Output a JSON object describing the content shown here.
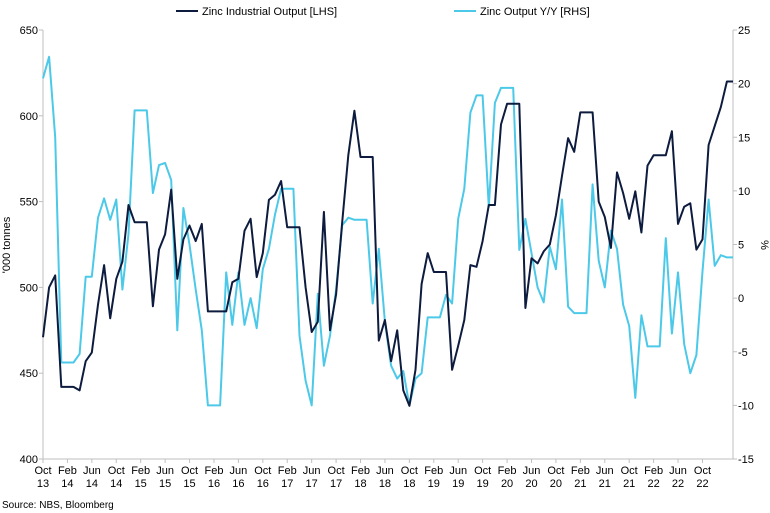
{
  "chart_data": {
    "type": "line",
    "title": "",
    "source": "Source: NBS, Bloomberg",
    "left_axis": {
      "label": "'000 tonnes",
      "range": [
        400,
        650
      ],
      "ticks": [
        "650",
        "600",
        "550",
        "500",
        "450",
        "400"
      ]
    },
    "right_axis": {
      "label": "%",
      "range": [
        -15,
        25
      ],
      "ticks": [
        "25",
        "20",
        "15",
        "10",
        "5",
        "0",
        "-5",
        "-10",
        "-15"
      ]
    },
    "x_ticks": [
      {
        "month": "Oct",
        "year": "13"
      },
      {
        "month": "Feb",
        "year": "14"
      },
      {
        "month": "Jun",
        "year": "14"
      },
      {
        "month": "Oct",
        "year": "14"
      },
      {
        "month": "Feb",
        "year": "15"
      },
      {
        "month": "Jun",
        "year": "15"
      },
      {
        "month": "Oct",
        "year": "15"
      },
      {
        "month": "Feb",
        "year": "16"
      },
      {
        "month": "Jun",
        "year": "16"
      },
      {
        "month": "Oct",
        "year": "16"
      },
      {
        "month": "Feb",
        "year": "17"
      },
      {
        "month": "Jun",
        "year": "17"
      },
      {
        "month": "Oct",
        "year": "17"
      },
      {
        "month": "Feb",
        "year": "18"
      },
      {
        "month": "Jun",
        "year": "18"
      },
      {
        "month": "Oct",
        "year": "18"
      },
      {
        "month": "Feb",
        "year": "19"
      },
      {
        "month": "Jun",
        "year": "19"
      },
      {
        "month": "Oct",
        "year": "19"
      },
      {
        "month": "Feb",
        "year": "20"
      },
      {
        "month": "Jun",
        "year": "20"
      },
      {
        "month": "Oct",
        "year": "20"
      },
      {
        "month": "Feb",
        "year": "21"
      },
      {
        "month": "Jun",
        "year": "21"
      },
      {
        "month": "Oct",
        "year": "21"
      },
      {
        "month": "Feb",
        "year": "22"
      },
      {
        "month": "Jun",
        "year": "22"
      },
      {
        "month": "Oct",
        "year": "22"
      }
    ],
    "series": [
      {
        "name": "Zinc Industrial Output [LHS]",
        "axis": "left",
        "color": "#0d1b3e",
        "points": [
          [
            "2013-10",
            471
          ],
          [
            "2013-11",
            500
          ],
          [
            "2013-12",
            507
          ],
          [
            "2014-01",
            442
          ],
          [
            "2014-02",
            442
          ],
          [
            "2014-03",
            442
          ],
          [
            "2014-04",
            440
          ],
          [
            "2014-05",
            457
          ],
          [
            "2014-06",
            462
          ],
          [
            "2014-07",
            490
          ],
          [
            "2014-08",
            513
          ],
          [
            "2014-09",
            482
          ],
          [
            "2014-10",
            505
          ],
          [
            "2014-11",
            515
          ],
          [
            "2014-12",
            548
          ],
          [
            "2015-01",
            538
          ],
          [
            "2015-02",
            538
          ],
          [
            "2015-03",
            538
          ],
          [
            "2015-04",
            489
          ],
          [
            "2015-05",
            522
          ],
          [
            "2015-06",
            531
          ],
          [
            "2015-07",
            557
          ],
          [
            "2015-08",
            505
          ],
          [
            "2015-09",
            528
          ],
          [
            "2015-10",
            536
          ],
          [
            "2015-11",
            527
          ],
          [
            "2015-12",
            537
          ],
          [
            "2016-01",
            486
          ],
          [
            "2016-02",
            486
          ],
          [
            "2016-03",
            486
          ],
          [
            "2016-04",
            486
          ],
          [
            "2016-05",
            503
          ],
          [
            "2016-06",
            505
          ],
          [
            "2016-07",
            533
          ],
          [
            "2016-08",
            540
          ],
          [
            "2016-09",
            506
          ],
          [
            "2016-10",
            520
          ],
          [
            "2016-11",
            551
          ],
          [
            "2016-12",
            554
          ],
          [
            "2017-01",
            562
          ],
          [
            "2017-02",
            535
          ],
          [
            "2017-03",
            535
          ],
          [
            "2017-04",
            535
          ],
          [
            "2017-05",
            500
          ],
          [
            "2017-06",
            474
          ],
          [
            "2017-07",
            480
          ],
          [
            "2017-08",
            544
          ],
          [
            "2017-09",
            475
          ],
          [
            "2017-10",
            496
          ],
          [
            "2017-11",
            538
          ],
          [
            "2017-12",
            577
          ],
          [
            "2018-01",
            603
          ],
          [
            "2018-02",
            576
          ],
          [
            "2018-03",
            576
          ],
          [
            "2018-04",
            576
          ],
          [
            "2018-05",
            469
          ],
          [
            "2018-06",
            481
          ],
          [
            "2018-07",
            457
          ],
          [
            "2018-08",
            475
          ],
          [
            "2018-09",
            440
          ],
          [
            "2018-10",
            431
          ],
          [
            "2018-11",
            452
          ],
          [
            "2018-12",
            502
          ],
          [
            "2019-01",
            520
          ],
          [
            "2019-02",
            509
          ],
          [
            "2019-03",
            509
          ],
          [
            "2019-04",
            509
          ],
          [
            "2019-05",
            452
          ],
          [
            "2019-06",
            466
          ],
          [
            "2019-07",
            481
          ],
          [
            "2019-08",
            513
          ],
          [
            "2019-09",
            512
          ],
          [
            "2019-10",
            527
          ],
          [
            "2019-11",
            548
          ],
          [
            "2019-12",
            548
          ],
          [
            "2020-01",
            595
          ],
          [
            "2020-02",
            607
          ],
          [
            "2020-03",
            607
          ],
          [
            "2020-04",
            607
          ],
          [
            "2020-05",
            488
          ],
          [
            "2020-06",
            517
          ],
          [
            "2020-07",
            514
          ],
          [
            "2020-08",
            521
          ],
          [
            "2020-09",
            525
          ],
          [
            "2020-10",
            542
          ],
          [
            "2020-11",
            565
          ],
          [
            "2020-12",
            587
          ],
          [
            "2021-01",
            579
          ],
          [
            "2021-02",
            602
          ],
          [
            "2021-03",
            602
          ],
          [
            "2021-04",
            602
          ],
          [
            "2021-05",
            550
          ],
          [
            "2021-06",
            541
          ],
          [
            "2021-07",
            523
          ],
          [
            "2021-08",
            567
          ],
          [
            "2021-09",
            555
          ],
          [
            "2021-10",
            540
          ],
          [
            "2021-11",
            556
          ],
          [
            "2021-12",
            532
          ],
          [
            "2022-01",
            571
          ],
          [
            "2022-02",
            577
          ],
          [
            "2022-03",
            577
          ],
          [
            "2022-04",
            577
          ],
          [
            "2022-05",
            591
          ],
          [
            "2022-06",
            537
          ],
          [
            "2022-07",
            547
          ],
          [
            "2022-08",
            549
          ],
          [
            "2022-09",
            522
          ],
          [
            "2022-10",
            528
          ],
          [
            "2022-11",
            583
          ],
          [
            "2022-12",
            594
          ],
          [
            "2023-01",
            605
          ],
          [
            "2023-02",
            620
          ],
          [
            "2023-03",
            620
          ]
        ]
      },
      {
        "name": "Zinc Output Y/Y [RHS]",
        "axis": "right",
        "color": "#4cc9e8",
        "points": [
          [
            "2013-10",
            20.5
          ],
          [
            "2013-11",
            22.5
          ],
          [
            "2013-12",
            15.0
          ],
          [
            "2014-01",
            -6.0
          ],
          [
            "2014-02",
            -6.0
          ],
          [
            "2014-03",
            -6.0
          ],
          [
            "2014-04",
            -5.2
          ],
          [
            "2014-05",
            2.0
          ],
          [
            "2014-06",
            2.0
          ],
          [
            "2014-07",
            7.5
          ],
          [
            "2014-08",
            9.3
          ],
          [
            "2014-09",
            7.3
          ],
          [
            "2014-10",
            9.2
          ],
          [
            "2014-11",
            0.8
          ],
          [
            "2014-12",
            6.0
          ],
          [
            "2015-01",
            17.5
          ],
          [
            "2015-02",
            17.5
          ],
          [
            "2015-03",
            17.5
          ],
          [
            "2015-04",
            9.8
          ],
          [
            "2015-05",
            12.4
          ],
          [
            "2015-06",
            12.6
          ],
          [
            "2015-07",
            11.0
          ],
          [
            "2015-08",
            -3.0
          ],
          [
            "2015-09",
            8.4
          ],
          [
            "2015-10",
            5.0
          ],
          [
            "2015-11",
            0.8
          ],
          [
            "2015-12",
            -3.0
          ],
          [
            "2016-01",
            -10.0
          ],
          [
            "2016-02",
            -10.0
          ],
          [
            "2016-03",
            -10.0
          ],
          [
            "2016-04",
            2.4
          ],
          [
            "2016-05",
            -2.5
          ],
          [
            "2016-06",
            2.4
          ],
          [
            "2016-07",
            -2.5
          ],
          [
            "2016-08",
            0.0
          ],
          [
            "2016-09",
            -2.8
          ],
          [
            "2016-10",
            2.7
          ],
          [
            "2016-11",
            4.6
          ],
          [
            "2016-12",
            7.8
          ],
          [
            "2017-01",
            10.2
          ],
          [
            "2017-02",
            10.2
          ],
          [
            "2017-03",
            10.2
          ],
          [
            "2017-04",
            -3.5
          ],
          [
            "2017-05",
            -7.7
          ],
          [
            "2017-06",
            -10.0
          ],
          [
            "2017-07",
            0.4
          ],
          [
            "2017-08",
            -6.3
          ],
          [
            "2017-09",
            -3.5
          ],
          [
            "2017-10",
            0.8
          ],
          [
            "2017-11",
            6.8
          ],
          [
            "2017-12",
            7.5
          ],
          [
            "2018-01",
            7.3
          ],
          [
            "2018-02",
            7.3
          ],
          [
            "2018-03",
            7.3
          ],
          [
            "2018-04",
            -0.5
          ],
          [
            "2018-05",
            4.6
          ],
          [
            "2018-06",
            -2.2
          ],
          [
            "2018-07",
            -6.3
          ],
          [
            "2018-08",
            -7.5
          ],
          [
            "2018-09",
            -6.8
          ],
          [
            "2018-10",
            -10.0
          ],
          [
            "2018-11",
            -7.5
          ],
          [
            "2018-12",
            -7.0
          ],
          [
            "2019-01",
            -1.8
          ],
          [
            "2019-02",
            -1.8
          ],
          [
            "2019-03",
            -1.8
          ],
          [
            "2019-04",
            0.3
          ],
          [
            "2019-05",
            -0.5
          ],
          [
            "2019-06",
            7.4
          ],
          [
            "2019-07",
            10.2
          ],
          [
            "2019-08",
            17.3
          ],
          [
            "2019-09",
            18.9
          ],
          [
            "2019-10",
            18.9
          ],
          [
            "2019-11",
            8.5
          ],
          [
            "2019-12",
            18.2
          ],
          [
            "2020-01",
            19.6
          ],
          [
            "2020-02",
            19.6
          ],
          [
            "2020-03",
            19.6
          ],
          [
            "2020-04",
            4.5
          ],
          [
            "2020-05",
            7.4
          ],
          [
            "2020-06",
            4.2
          ],
          [
            "2020-07",
            1.0
          ],
          [
            "2020-08",
            -0.4
          ],
          [
            "2020-09",
            4.8
          ],
          [
            "2020-10",
            2.7
          ],
          [
            "2020-11",
            9.2
          ],
          [
            "2020-12",
            -0.8
          ],
          [
            "2021-01",
            -1.4
          ],
          [
            "2021-02",
            -1.4
          ],
          [
            "2021-03",
            -1.4
          ],
          [
            "2021-04",
            10.6
          ],
          [
            "2021-05",
            3.5
          ],
          [
            "2021-06",
            1.0
          ],
          [
            "2021-07",
            6.3
          ],
          [
            "2021-08",
            4.6
          ],
          [
            "2021-09",
            -0.6
          ],
          [
            "2021-10",
            -2.6
          ],
          [
            "2021-11",
            -9.3
          ],
          [
            "2021-12",
            -1.6
          ],
          [
            "2022-01",
            -4.5
          ],
          [
            "2022-02",
            -4.5
          ],
          [
            "2022-03",
            -4.5
          ],
          [
            "2022-04",
            5.6
          ],
          [
            "2022-05",
            -3.3
          ],
          [
            "2022-06",
            2.4
          ],
          [
            "2022-07",
            -4.3
          ],
          [
            "2022-08",
            -7.0
          ],
          [
            "2022-09",
            -5.3
          ],
          [
            "2022-10",
            2.5
          ],
          [
            "2022-11",
            9.2
          ],
          [
            "2022-12",
            3.0
          ],
          [
            "2023-01",
            4.0
          ],
          [
            "2023-02",
            3.8
          ],
          [
            "2023-03",
            3.8
          ]
        ]
      }
    ]
  }
}
